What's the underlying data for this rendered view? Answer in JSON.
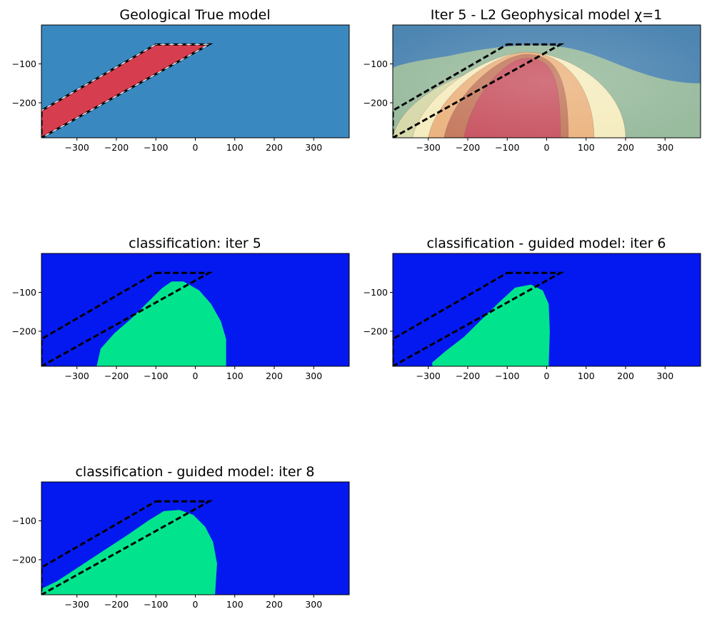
{
  "chart_data": [
    {
      "type": "heatmap",
      "title": "Geological True model",
      "xlim": [
        -390,
        390
      ],
      "ylim": [
        -290,
        0
      ],
      "xticks": [
        -300,
        -200,
        -100,
        0,
        100,
        200,
        300
      ],
      "yticks": [
        -100,
        -200
      ],
      "style": "true",
      "background_color": "#3a88c0",
      "body_color": "#d63e50",
      "dike": [
        [
          -100,
          -50
        ],
        [
          35,
          -50
        ],
        [
          -390,
          -290
        ],
        [
          -390,
          -220
        ]
      ],
      "dashed_outline": [
        [
          -100,
          -50
        ],
        [
          35,
          -50
        ],
        [
          -390,
          -290
        ],
        [
          -390,
          -220
        ]
      ]
    },
    {
      "type": "heatmap",
      "title": "Iter 5 - L2 Geophysical model χ=1",
      "xlim": [
        -390,
        390
      ],
      "ylim": [
        -290,
        0
      ],
      "xticks": [
        -300,
        -200,
        -100,
        0,
        100,
        200,
        300
      ],
      "yticks": [
        -100,
        -200
      ],
      "style": "geophys",
      "band_colors": [
        "#4e86b2",
        "#99bb9e",
        "#d7d9ab",
        "#f5ecbf",
        "#ebb480",
        "#c47a5f",
        "#c85562"
      ],
      "dashed_outline": [
        [
          -100,
          -50
        ],
        [
          35,
          -50
        ],
        [
          -390,
          -290
        ],
        [
          -390,
          -220
        ]
      ]
    },
    {
      "type": "heatmap",
      "title": "classification: iter 5",
      "xlim": [
        -390,
        390
      ],
      "ylim": [
        -290,
        0
      ],
      "xticks": [
        -300,
        -200,
        -100,
        0,
        100,
        200,
        300
      ],
      "yticks": [
        -100,
        -200
      ],
      "style": "class",
      "background_color": "#0419ef",
      "body_color": "#01e48d",
      "body": [
        [
          -250,
          -290
        ],
        [
          78,
          -290
        ],
        [
          78,
          -220
        ],
        [
          65,
          -175
        ],
        [
          40,
          -130
        ],
        [
          10,
          -95
        ],
        [
          -30,
          -72
        ],
        [
          -60,
          -72
        ],
        [
          -85,
          -90
        ],
        [
          -120,
          -125
        ],
        [
          -165,
          -170
        ],
        [
          -205,
          -205
        ],
        [
          -240,
          -245
        ]
      ],
      "dashed_outline": [
        [
          -100,
          -50
        ],
        [
          35,
          -50
        ],
        [
          -390,
          -290
        ],
        [
          -390,
          -220
        ]
      ]
    },
    {
      "type": "heatmap",
      "title": "classification - guided model: iter 6",
      "xlim": [
        -390,
        390
      ],
      "ylim": [
        -290,
        0
      ],
      "xticks": [
        -300,
        -200,
        -100,
        0,
        100,
        200,
        300
      ],
      "yticks": [
        -100,
        -200
      ],
      "style": "class",
      "background_color": "#0419ef",
      "body_color": "#01e48d",
      "body": [
        [
          -290,
          -290
        ],
        [
          5,
          -290
        ],
        [
          8,
          -200
        ],
        [
          5,
          -130
        ],
        [
          -10,
          -95
        ],
        [
          -40,
          -80
        ],
        [
          -80,
          -88
        ],
        [
          -120,
          -125
        ],
        [
          -165,
          -170
        ],
        [
          -210,
          -215
        ],
        [
          -255,
          -250
        ],
        [
          -290,
          -280
        ]
      ],
      "dashed_outline": [
        [
          -100,
          -50
        ],
        [
          35,
          -50
        ],
        [
          -390,
          -290
        ],
        [
          -390,
          -220
        ]
      ]
    },
    {
      "type": "heatmap",
      "title": "classification - guided model: iter 8",
      "xlim": [
        -390,
        390
      ],
      "ylim": [
        -290,
        0
      ],
      "xticks": [
        -300,
        -200,
        -100,
        0,
        100,
        200,
        300
      ],
      "yticks": [
        -100,
        -200
      ],
      "style": "class",
      "background_color": "#0419ef",
      "body_color": "#01e48d",
      "body": [
        [
          -390,
          -290
        ],
        [
          50,
          -290
        ],
        [
          55,
          -210
        ],
        [
          45,
          -155
        ],
        [
          25,
          -115
        ],
        [
          -5,
          -85
        ],
        [
          -40,
          -72
        ],
        [
          -80,
          -75
        ],
        [
          -120,
          -100
        ],
        [
          -170,
          -135
        ],
        [
          -230,
          -175
        ],
        [
          -290,
          -215
        ],
        [
          -350,
          -255
        ],
        [
          -390,
          -275
        ]
      ],
      "dashed_outline": [
        [
          -100,
          -50
        ],
        [
          35,
          -50
        ],
        [
          -390,
          -290
        ],
        [
          -390,
          -220
        ]
      ]
    }
  ]
}
